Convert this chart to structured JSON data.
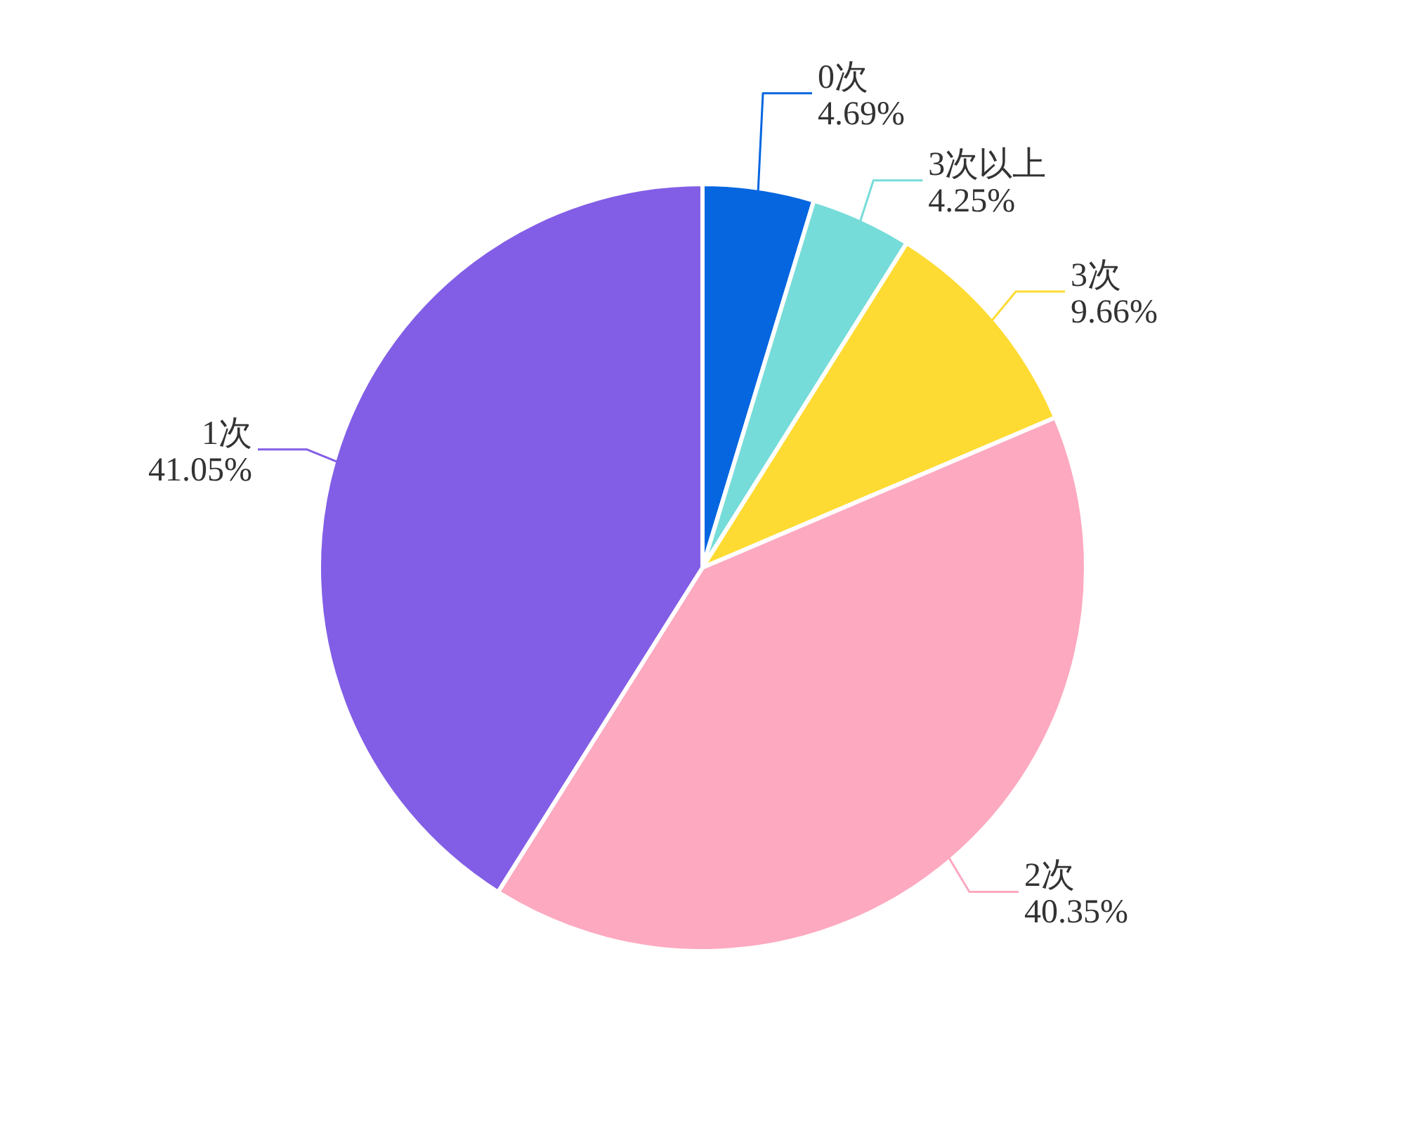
{
  "chart_data": {
    "type": "pie",
    "categories": [
      "0次",
      "3次以上",
      "3次",
      "2次",
      "1次"
    ],
    "values": [
      4.69,
      4.25,
      9.66,
      40.35,
      41.05
    ],
    "colors": [
      "#0566e0",
      "#76dcd9",
      "#fedb32",
      "#fda9c0",
      "#825ee6"
    ],
    "value_labels": [
      "4.69%",
      "4.25%",
      "9.66%",
      "40.35%",
      "41.05%"
    ]
  }
}
